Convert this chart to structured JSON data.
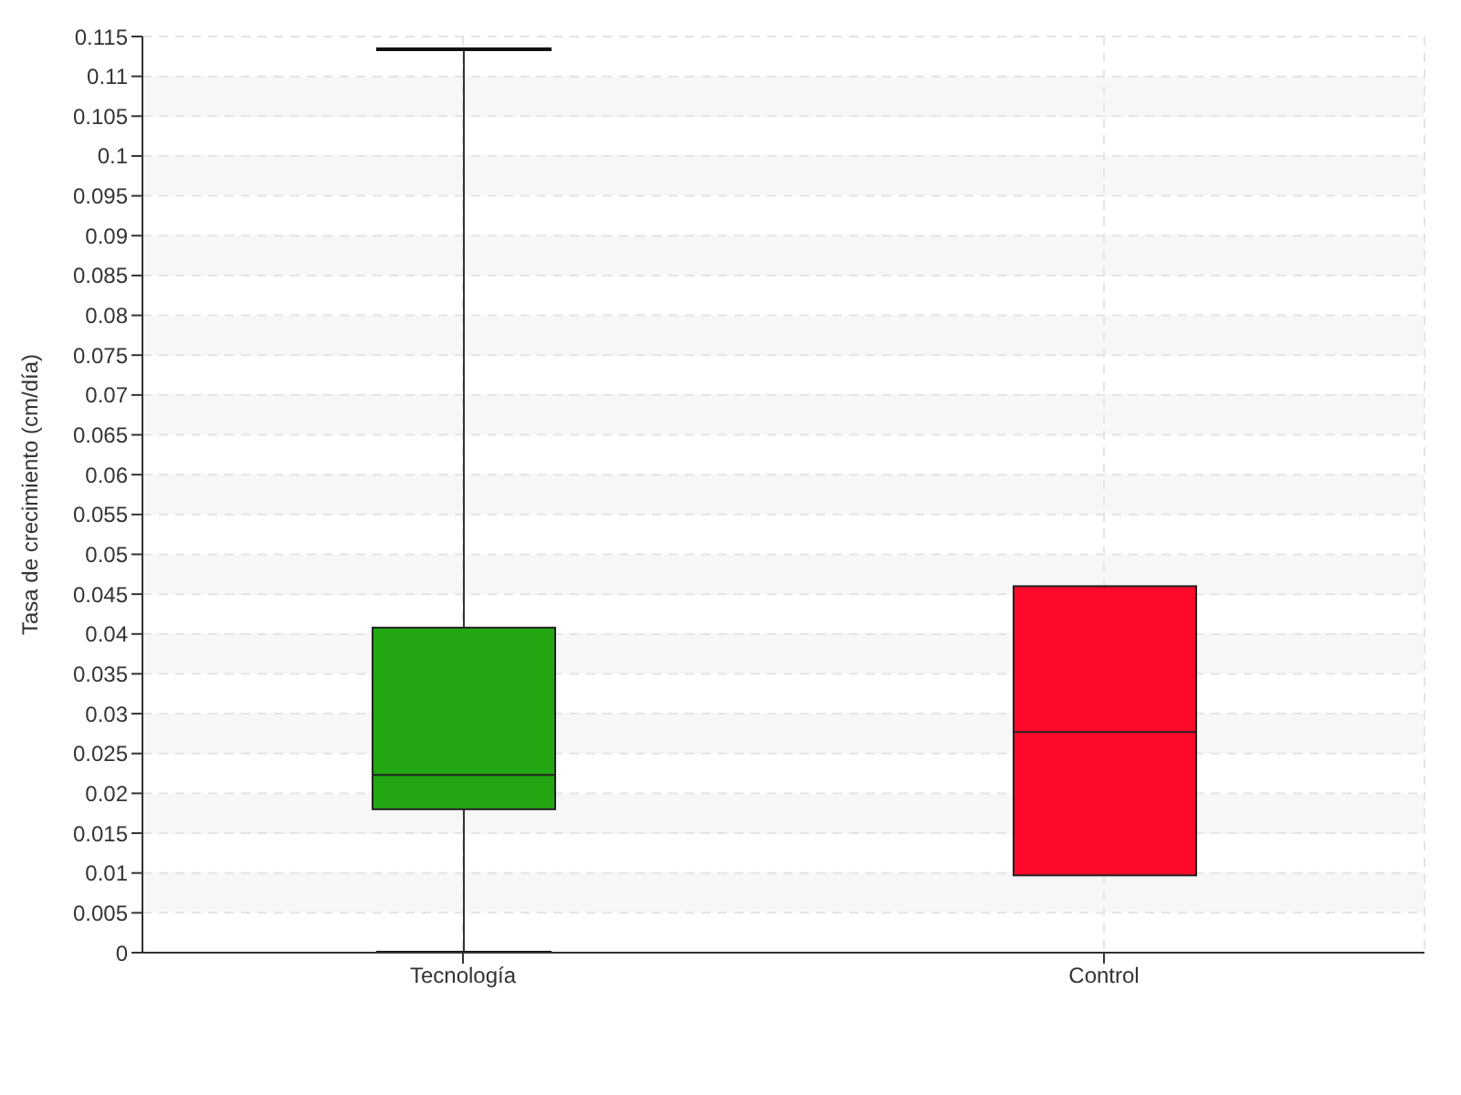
{
  "chart_data": {
    "type": "box",
    "categories": [
      "Tecnología",
      "Control"
    ],
    "ylabel": "Tasa de crecimiento (cm/día)",
    "boxes": [
      {
        "low": 0,
        "q1": 0.018,
        "median": 0.0223,
        "q3": 0.0408,
        "high": 0.1134
      },
      {
        "low": 0.0097,
        "q1": 0.0097,
        "median": 0.0277,
        "q3": 0.046,
        "high": 0.046
      }
    ],
    "colors": [
      "#22a612",
      "#ff0a2a"
    ],
    "ylim": [
      0,
      0.115
    ],
    "yticks": [
      0,
      0.005,
      0.01,
      0.015,
      0.02,
      0.025,
      0.03,
      0.035,
      0.04,
      0.045,
      0.05,
      0.055,
      0.06,
      0.065,
      0.07,
      0.075,
      0.08,
      0.085,
      0.09,
      0.095,
      0.1,
      0.105,
      0.11,
      0.115
    ],
    "grid": true
  }
}
